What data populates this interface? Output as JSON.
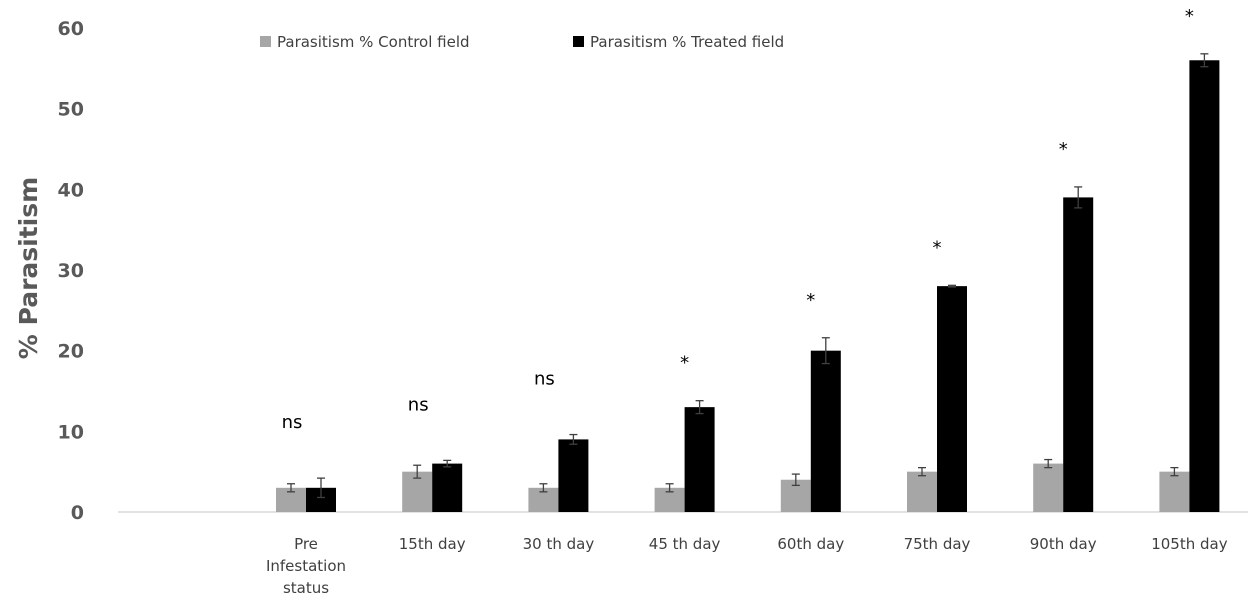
{
  "chart_data": {
    "type": "bar",
    "categories": [
      [
        "Pre",
        "Infestation",
        "status"
      ],
      [
        "15th day"
      ],
      [
        "30 th day"
      ],
      [
        "45 th day"
      ],
      [
        "60th day"
      ],
      [
        "75th day"
      ],
      [
        "90th day"
      ],
      [
        "105th day"
      ]
    ],
    "series": [
      {
        "name": "Parasitism % Control field",
        "color": "#a6a6a6",
        "values": [
          3,
          5,
          3,
          3,
          4,
          5,
          6,
          5
        ],
        "errors": [
          0.5,
          0.8,
          0.5,
          0.5,
          0.7,
          0.5,
          0.5,
          0.5
        ]
      },
      {
        "name": "Parasitism % Treated field",
        "color": "#000000",
        "values": [
          3,
          6,
          9,
          13,
          20,
          28,
          39,
          56
        ],
        "errors": [
          1.2,
          0.4,
          0.6,
          0.8,
          1.6,
          0.1,
          1.3,
          0.8
        ]
      }
    ],
    "significance": [
      "ns",
      "ns",
      "ns",
      "*",
      "*",
      "*",
      "*",
      "*"
    ],
    "ylabel": "% Parasitism",
    "xlabel": "",
    "ylim": [
      0,
      60
    ],
    "yticks": [
      0,
      10,
      20,
      30,
      40,
      50,
      60
    ],
    "grid": false,
    "legend_position": "top"
  }
}
